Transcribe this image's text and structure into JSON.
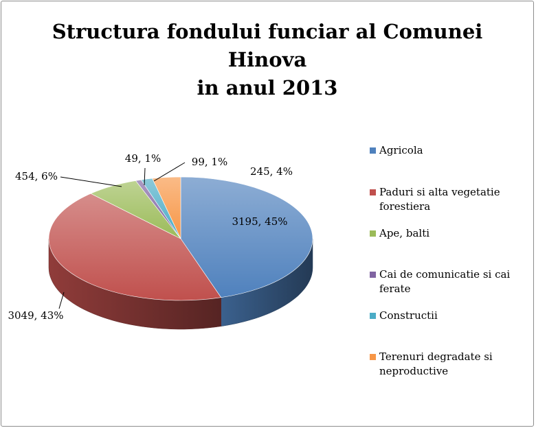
{
  "chart_data": {
    "type": "pie",
    "title_lines": [
      "Structura fondului funciar al Comunei",
      "Hinova",
      "in anul 2013"
    ],
    "legend_position": "right",
    "slices": [
      {
        "name": "Agricola",
        "value": 3195,
        "percent": 45,
        "label": "3195, 45%",
        "color": "#4f81bd",
        "legend_lines": [
          "Agricola"
        ]
      },
      {
        "name": "Paduri si alta vegetatie forestiera",
        "value": 3049,
        "percent": 43,
        "label": "3049, 43%",
        "color": "#c0504d",
        "legend_lines": [
          "Paduri si alta vegetatie",
          "forestiera"
        ]
      },
      {
        "name": "Ape, balti",
        "value": 454,
        "percent": 6,
        "label": "454, 6%",
        "color": "#9bbb59",
        "legend_lines": [
          "Ape, balti"
        ]
      },
      {
        "name": "Cai de comunicatie si cai ferate",
        "value": 49,
        "percent": 1,
        "label": "49, 1%",
        "color": "#8064a2",
        "legend_lines": [
          "Cai de comunicatie si cai",
          "ferate"
        ]
      },
      {
        "name": "Constructii",
        "value": 99,
        "percent": 1,
        "label": "99, 1%",
        "color": "#4bacc6",
        "legend_lines": [
          "Constructii"
        ]
      },
      {
        "name": "Terenuri degradate si neproductive",
        "value": 245,
        "percent": 4,
        "label": "245, 4%",
        "color": "#f79646",
        "legend_lines": [
          "Terenuri degradate si",
          "neproductive"
        ]
      }
    ]
  }
}
